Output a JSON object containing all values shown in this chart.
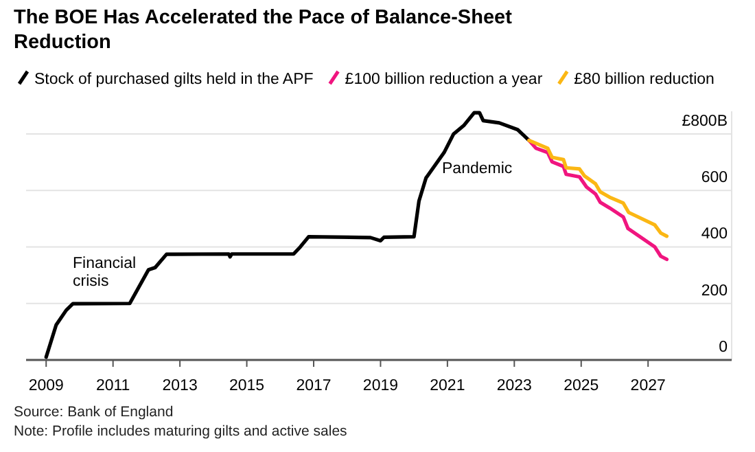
{
  "chart_data": {
    "type": "line",
    "title": "The BOE Has Accelerated the Pace of Balance-Sheet Reduction",
    "series": [
      {
        "name": "Stock of purchased gilts held in the APF",
        "color": "#000000",
        "x": [
          2009.0,
          2009.3,
          2009.6,
          2009.8,
          2011.5,
          2012.06,
          2012.26,
          2012.6,
          2014.46,
          2014.5,
          2014.55,
          2016.4,
          2016.6,
          2016.85,
          2018.7,
          2019.0,
          2019.1,
          2020.0,
          2020.15,
          2020.36,
          2020.9,
          2021.18,
          2021.5,
          2021.8,
          2021.96,
          2022.07,
          2022.55,
          2023.1,
          2023.44
        ],
        "values": [
          10,
          124,
          176,
          199,
          200,
          319,
          327,
          374,
          375,
          365,
          375,
          375,
          400,
          436,
          433,
          422,
          434,
          436,
          563,
          644,
          734,
          799,
          831,
          875,
          875,
          847,
          839,
          815,
          777
        ]
      },
      {
        "name": "£100 billion reduction a year",
        "color": "#f0157f",
        "x": [
          2023.44,
          2023.65,
          2024.0,
          2024.13,
          2024.47,
          2024.55,
          2024.95,
          2025.16,
          2025.43,
          2025.57,
          2025.85,
          2026.26,
          2026.4,
          2027.2,
          2027.38,
          2027.56
        ],
        "values": [
          777,
          749,
          734,
          701,
          685,
          657,
          648,
          612,
          587,
          558,
          538,
          506,
          465,
          400,
          367,
          356
        ]
      },
      {
        "name": "£80 billion reduction",
        "color": "#fbb714",
        "x": [
          2023.44,
          2024.0,
          2024.13,
          2024.47,
          2024.55,
          2024.95,
          2025.1,
          2025.43,
          2025.57,
          2025.85,
          2026.26,
          2026.42,
          2027.2,
          2027.38,
          2027.56
        ],
        "values": [
          777,
          749,
          717,
          709,
          680,
          676,
          651,
          623,
          595,
          576,
          555,
          522,
          478,
          449,
          438
        ]
      }
    ],
    "xlim": [
      2008.4,
      2029.5
    ],
    "xticks": [
      2009,
      2011,
      2013,
      2015,
      2017,
      2019,
      2021,
      2023,
      2025,
      2027
    ],
    "ylim": [
      0,
      880
    ],
    "yticks": [
      0,
      200,
      400,
      600,
      {
        "value": 800,
        "label": "£800B"
      }
    ],
    "grid": "y",
    "legend": "top left",
    "annotations": [
      "Financial crisis",
      "Pandemic",
      "Source: Bank of England",
      "Note: Profile includes maturing gilts and active sales"
    ]
  }
}
